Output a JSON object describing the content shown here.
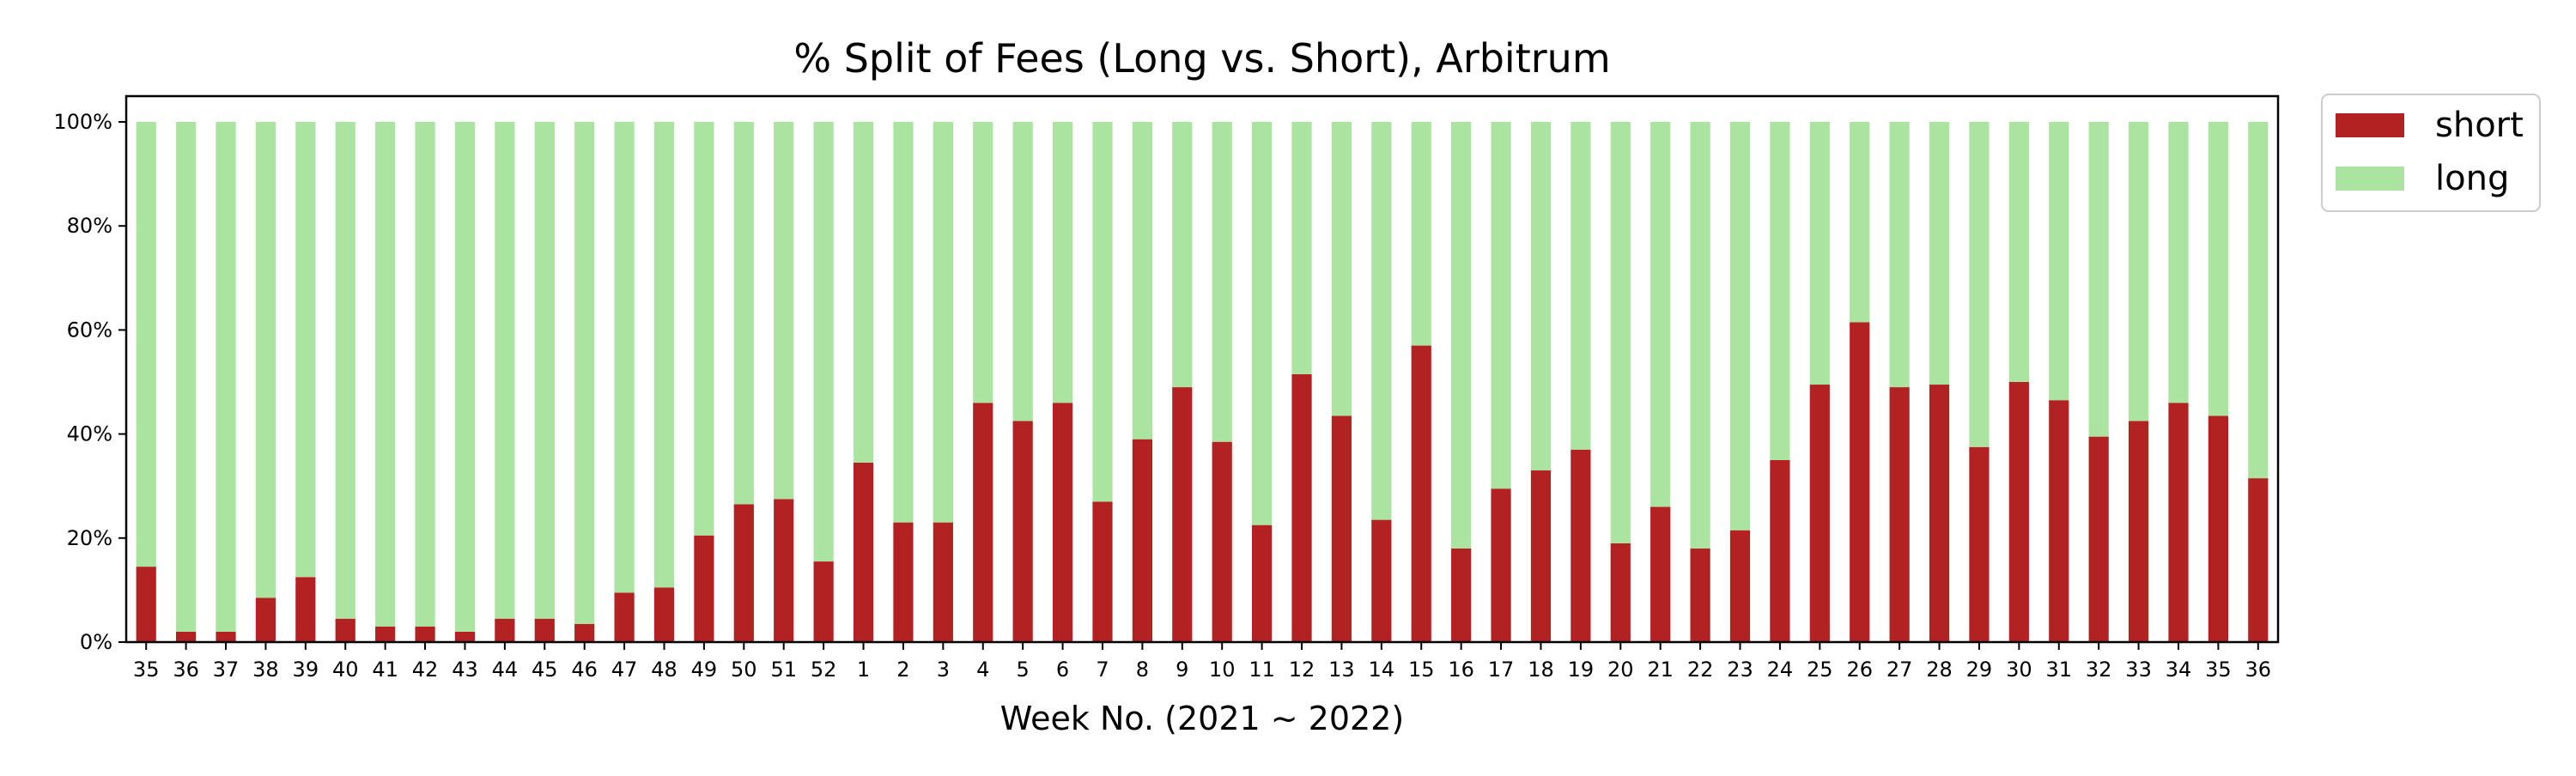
{
  "chart_data": {
    "type": "bar",
    "stacked": true,
    "percent": true,
    "title": "% Split of Fees (Long vs. Short), Arbitrum",
    "xlabel": "Week No. (2021 ~ 2022)",
    "ylabel": "",
    "ylim": [
      0,
      100
    ],
    "yticks": [
      "0%",
      "20%",
      "40%",
      "60%",
      "80%",
      "100%"
    ],
    "categories": [
      "35",
      "36",
      "37",
      "38",
      "39",
      "40",
      "41",
      "42",
      "43",
      "44",
      "45",
      "46",
      "47",
      "48",
      "49",
      "50",
      "51",
      "52",
      "1",
      "2",
      "3",
      "4",
      "5",
      "6",
      "7",
      "8",
      "9",
      "10",
      "11",
      "12",
      "13",
      "14",
      "15",
      "16",
      "17",
      "18",
      "19",
      "20",
      "21",
      "22",
      "23",
      "24",
      "25",
      "26",
      "27",
      "28",
      "29",
      "30",
      "31",
      "32",
      "33",
      "34",
      "35",
      "36"
    ],
    "series": [
      {
        "name": "short",
        "color": "#b22222",
        "values": [
          14.5,
          2,
          2,
          8.5,
          12.5,
          4.5,
          3,
          3,
          2,
          4.5,
          4.5,
          3.5,
          9.5,
          10.5,
          20.5,
          26.5,
          27.5,
          15.5,
          34.5,
          23,
          23,
          46,
          42.5,
          46,
          27,
          39,
          49,
          38.5,
          22.5,
          51.5,
          43.5,
          23.5,
          57,
          18,
          29.5,
          33,
          37,
          19,
          26,
          18,
          21.5,
          35,
          49.5,
          61.5,
          49,
          49.5,
          37.5,
          50,
          46.5,
          39.5,
          42.5,
          46,
          43.5,
          31.5
        ]
      },
      {
        "name": "long",
        "color": "#abe4a0",
        "values": [
          85.5,
          98,
          98,
          91.5,
          87.5,
          95.5,
          97,
          97,
          98,
          95.5,
          95.5,
          96.5,
          90.5,
          89.5,
          79.5,
          73.5,
          72.5,
          84.5,
          65.5,
          77,
          77,
          54,
          57.5,
          54,
          73,
          61,
          51,
          61.5,
          77.5,
          48.5,
          56.5,
          76.5,
          43,
          82,
          70.5,
          67,
          63,
          81,
          74,
          82,
          78.5,
          65,
          50.5,
          38.5,
          51,
          50.5,
          62.5,
          50,
          53.5,
          60.5,
          57.5,
          54,
          56.5,
          68.5
        ]
      }
    ],
    "legend_position": "outside-top-right",
    "grid": false
  }
}
